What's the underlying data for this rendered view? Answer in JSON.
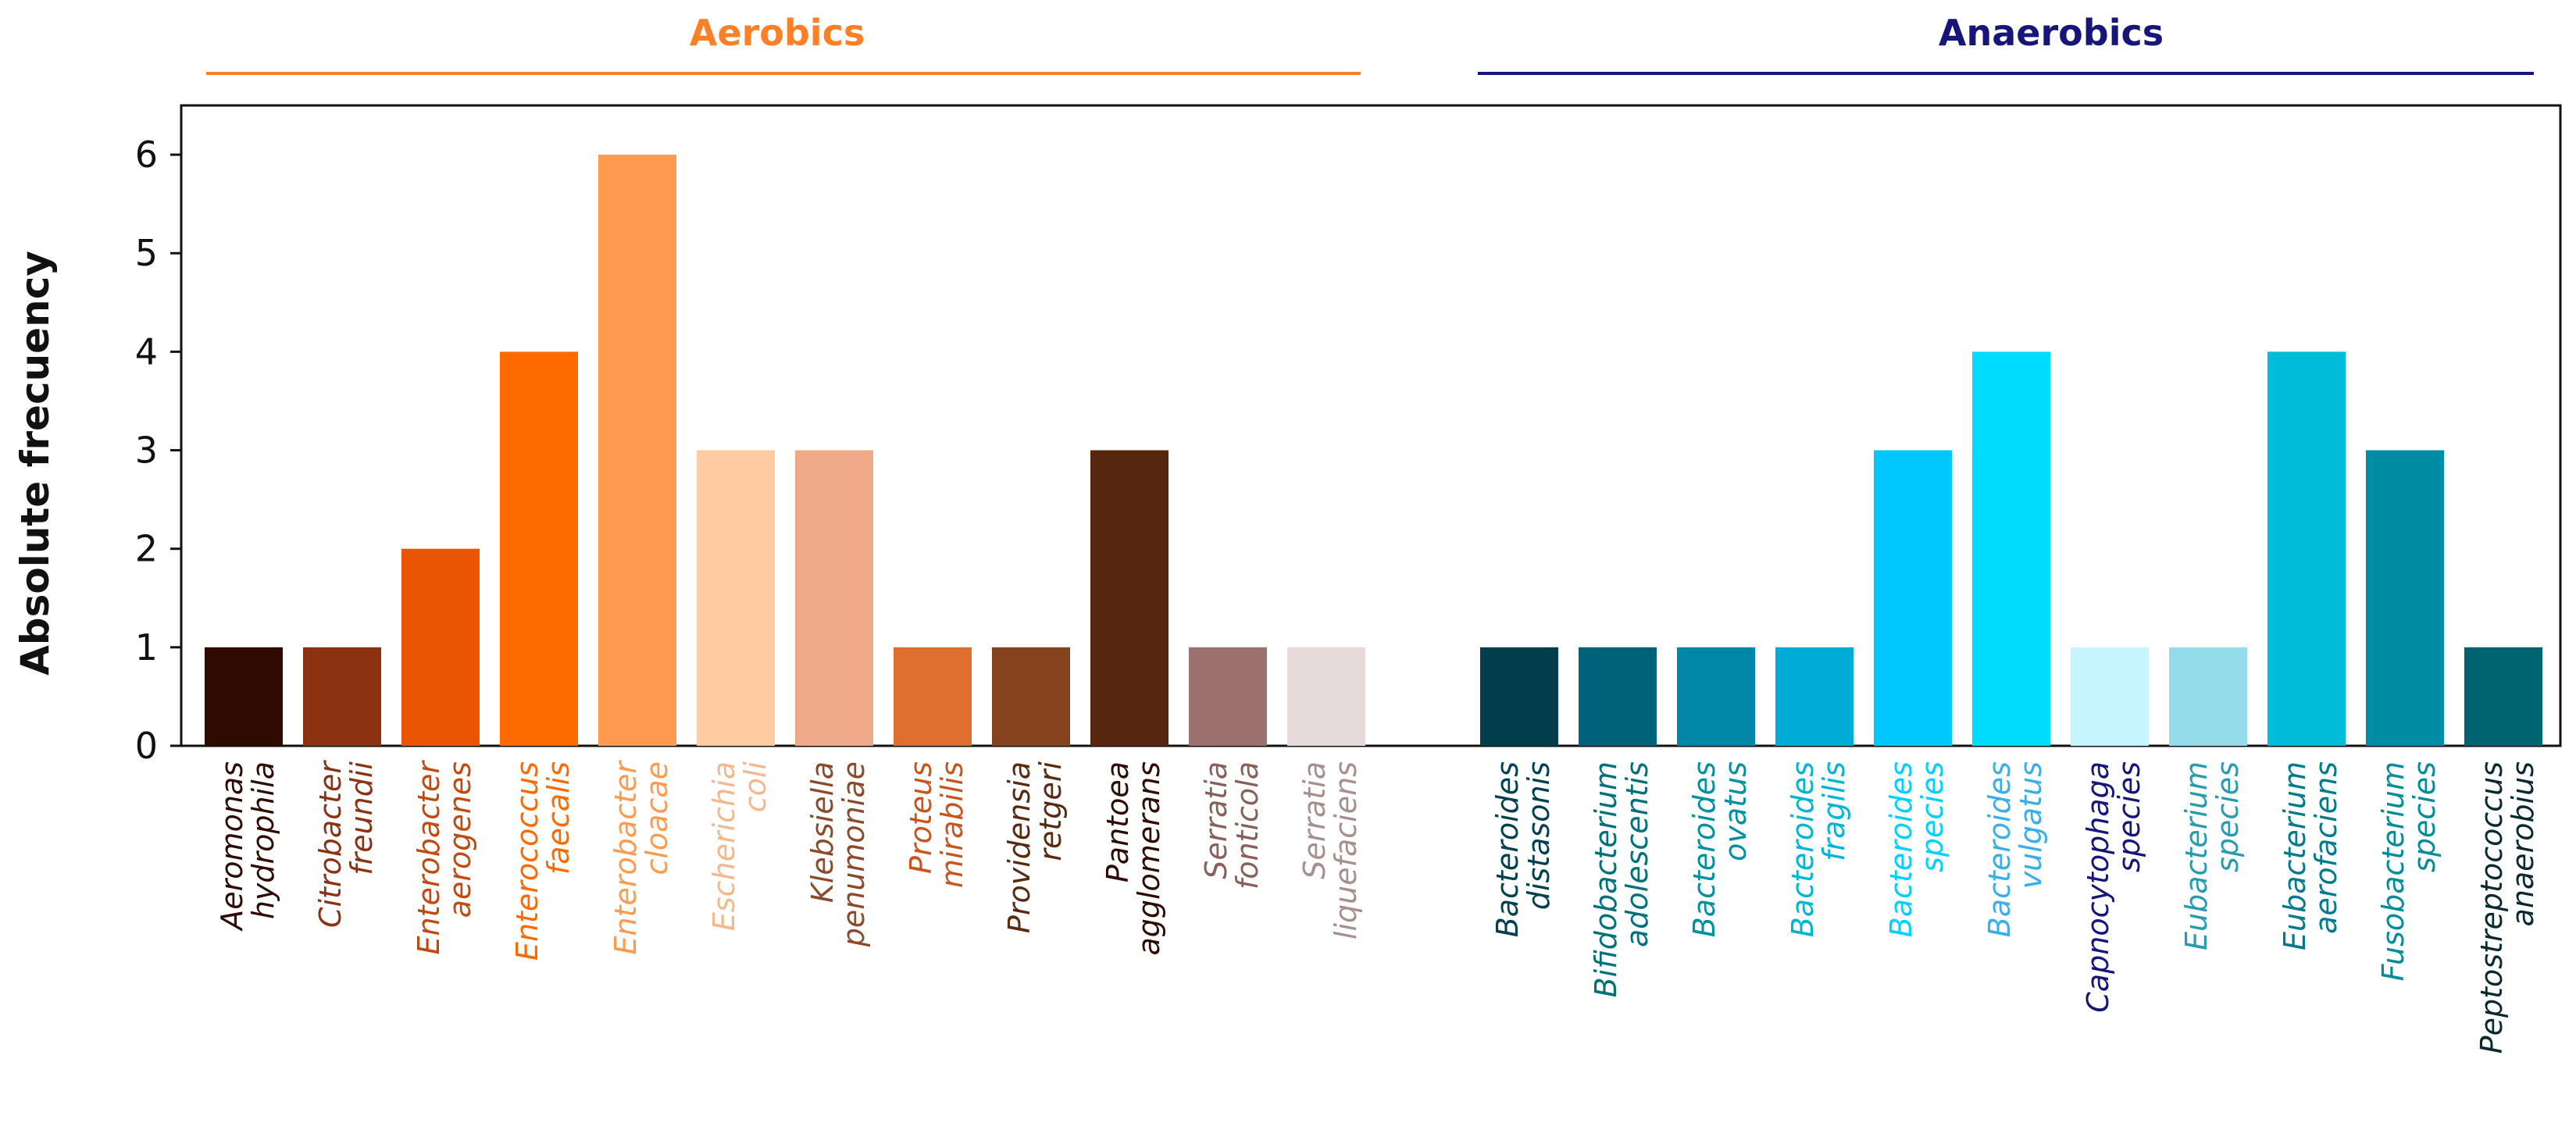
{
  "chart_data": {
    "type": "bar",
    "ylabel": "Absolute frecuency",
    "xlabel": "",
    "ylim": [
      0,
      6.5
    ],
    "yticks": [
      "0",
      "1",
      "2",
      "3",
      "4",
      "5",
      "6"
    ],
    "groups": [
      {
        "name": "Aerobics",
        "color": "#ff7f24",
        "text_color": "#ff7f24"
      },
      {
        "name": "Anaerobics",
        "color": "#15157a",
        "text_color": "#15157a"
      }
    ],
    "bars": [
      {
        "label": "Aeromonas hydrophila",
        "line1": "Aeromonas",
        "line2": "hydrophila",
        "value": 1,
        "group": 0,
        "color": "#2e0a00",
        "label_color": "#2e0a00"
      },
      {
        "label": "Citrobacter freundii",
        "line1": "Citrobacter",
        "line2": "freundii",
        "value": 1,
        "group": 0,
        "color": "#8c3210",
        "label_color": "#8c3210"
      },
      {
        "label": "Enterobacter aerogenes",
        "line1": "Enterobacter",
        "line2": "aerogenes",
        "value": 2,
        "group": 0,
        "color": "#ea5504",
        "label_color": "#c24a0e"
      },
      {
        "label": "Enterococcus faecalis",
        "line1": "Enterococcus",
        "line2": "faecalis",
        "value": 4,
        "group": 0,
        "color": "#ff6a00",
        "label_color": "#ff6a00"
      },
      {
        "label": "Enterobacter cloacae",
        "line1": "Enterobacter",
        "line2": "cloacae",
        "value": 6,
        "group": 0,
        "color": "#ff9a4f",
        "label_color": "#ff9a4f"
      },
      {
        "label": "Escherichia coli",
        "line1": "Escherichia",
        "line2": "coli",
        "value": 3,
        "group": 0,
        "color": "#ffcba3",
        "label_color": "#f5b88c"
      },
      {
        "label": "Klebsiella penumoniae",
        "line1": "Klebsiella",
        "line2": "penumoniae",
        "value": 3,
        "group": 0,
        "color": "#eeaa88",
        "label_color": "#8c4a2a"
      },
      {
        "label": "Proteus mirabilis",
        "line1": "Proteus",
        "line2": "mirabilis",
        "value": 1,
        "group": 0,
        "color": "#df6f2f",
        "label_color": "#c9551c"
      },
      {
        "label": "Providensia retgeri",
        "line1": "Providensia",
        "line2": "retgeri",
        "value": 1,
        "group": 0,
        "color": "#85421e",
        "label_color": "#5a2a10"
      },
      {
        "label": "Pantoea agglomerans",
        "line1": "Pantoea",
        "line2": "agglomerans",
        "value": 3,
        "group": 0,
        "color": "#57260f",
        "label_color": "#2e0a00"
      },
      {
        "label": "Serratia fonticola",
        "line1": "Serratia",
        "line2": "fonticola",
        "value": 1,
        "group": 0,
        "color": "#9c706c",
        "label_color": "#8a5f5a"
      },
      {
        "label": "Serratia liquefaciens",
        "line1": "Serratia",
        "line2": "liquefaciens",
        "value": 1,
        "group": 0,
        "color": "#e6dadb",
        "label_color": "#a88f8f"
      },
      {
        "label": "Bacteroides distasonis",
        "line1": "Bacteroides",
        "line2": "distasonis",
        "value": 1,
        "group": 1,
        "color": "#003e4c",
        "label_color": "#004050"
      },
      {
        "label": "Bifidobacterium adolescentis",
        "line1": "Bifidobacterium",
        "line2": "adolescentis",
        "value": 1,
        "group": 1,
        "color": "#006278",
        "label_color": "#00707a"
      },
      {
        "label": "Bacteroides ovatus",
        "line1": "Bacteroides",
        "line2": "ovatus",
        "value": 1,
        "group": 1,
        "color": "#0086a6",
        "label_color": "#0090a0"
      },
      {
        "label": "Bacteroides fragilis",
        "line1": "Bacteroides",
        "line2": "fragilis",
        "value": 1,
        "group": 1,
        "color": "#00abd6",
        "label_color": "#00b4d8"
      },
      {
        "label": "Bacteroides species",
        "line1": "Bacteroides",
        "line2": "species",
        "value": 3,
        "group": 1,
        "color": "#00c8ff",
        "label_color": "#00d0ff"
      },
      {
        "label": "Bacteroides vulgatus",
        "line1": "Bacteroides",
        "line2": "vulgatus",
        "value": 4,
        "group": 1,
        "color": "#00dcff",
        "label_color": "#3aaee8"
      },
      {
        "label": "Capnocytophaga species",
        "line1": "Capnocytophaga",
        "line2": "species",
        "value": 1,
        "group": 1,
        "color": "#c6f4ff",
        "label_color": "#15157a"
      },
      {
        "label": "Eubacterium species",
        "line1": "Eubacterium",
        "line2": "species",
        "value": 1,
        "group": 1,
        "color": "#94dcea",
        "label_color": "#2a9ab0"
      },
      {
        "label": "Eubacterium aerofaciens",
        "line1": "Eubacterium",
        "line2": "aerofaciens",
        "value": 4,
        "group": 1,
        "color": "#00bcd8",
        "label_color": "#007a8c"
      },
      {
        "label": "Fusobacterium species",
        "line1": "Fusobacterium",
        "line2": "species",
        "value": 3,
        "group": 1,
        "color": "#008ca2",
        "label_color": "#008c9a"
      },
      {
        "label": "Peptostreptococcus anaerobius",
        "line1": "Peptostreptococcus",
        "line2": "anaerobius",
        "value": 1,
        "group": 1,
        "color": "#006370",
        "label_color": "#0a2a30"
      }
    ]
  }
}
